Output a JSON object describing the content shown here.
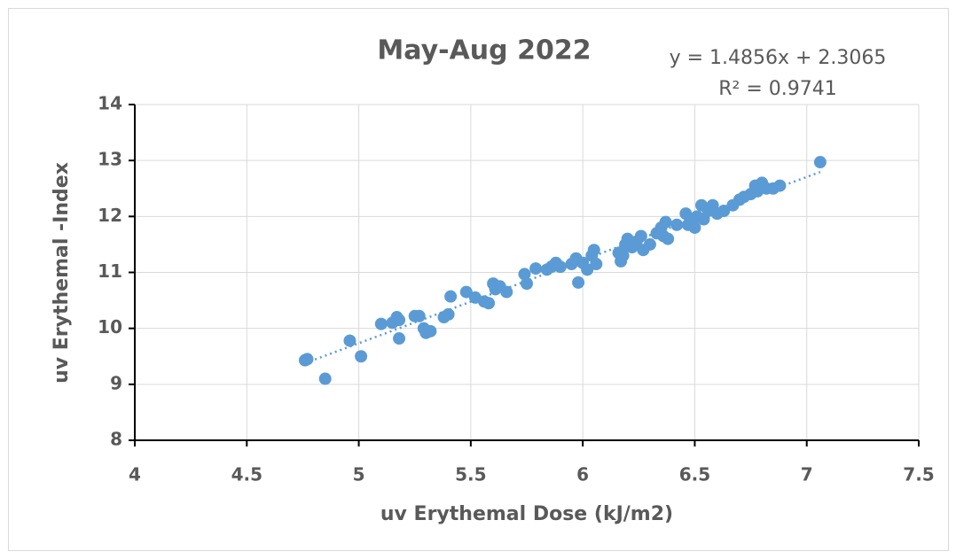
{
  "chart_data": {
    "type": "scatter",
    "title": "May-Aug 2022",
    "annotations": [
      "y = 1.4856x + 2.3065",
      "R² = 0.9741"
    ],
    "trendline": {
      "slope": 1.4856,
      "intercept": 2.3065
    },
    "xlabel": "uv Erythemal Dose (kJ/m2)",
    "ylabel": "uv Erythemal -Index",
    "x": [
      4.76,
      4.77,
      4.85,
      4.96,
      5.01,
      5.1,
      5.15,
      5.17,
      5.18,
      5.18,
      5.25,
      5.27,
      5.29,
      5.3,
      5.32,
      5.38,
      5.4,
      5.41,
      5.48,
      5.52,
      5.56,
      5.58,
      5.6,
      5.61,
      5.63,
      5.66,
      5.74,
      5.75,
      5.79,
      5.84,
      5.86,
      5.88,
      5.9,
      5.95,
      5.97,
      5.98,
      6.0,
      6.02,
      6.04,
      6.05,
      6.06,
      6.16,
      6.17,
      6.18,
      6.19,
      6.2,
      6.22,
      6.24,
      6.26,
      6.27,
      6.3,
      6.33,
      6.35,
      6.36,
      6.37,
      6.38,
      6.42,
      6.46,
      6.47,
      6.48,
      6.5,
      6.51,
      6.53,
      6.54,
      6.56,
      6.58,
      6.6,
      6.63,
      6.67,
      6.7,
      6.72,
      6.75,
      6.77,
      6.78,
      6.8,
      6.82,
      6.85,
      6.88,
      7.06
    ],
    "series": [
      {
        "color": "#5b9bd5",
        "values": [
          9.43,
          9.45,
          9.1,
          9.78,
          9.5,
          10.08,
          10.1,
          10.2,
          9.82,
          10.15,
          10.22,
          10.22,
          10.0,
          9.92,
          9.95,
          10.2,
          10.25,
          10.57,
          10.65,
          10.55,
          10.48,
          10.45,
          10.8,
          10.7,
          10.75,
          10.65,
          10.97,
          10.8,
          11.07,
          11.05,
          11.1,
          11.17,
          11.1,
          11.15,
          11.25,
          10.82,
          11.17,
          11.05,
          11.3,
          11.4,
          11.15,
          11.35,
          11.2,
          11.3,
          11.5,
          11.6,
          11.45,
          11.55,
          11.65,
          11.4,
          11.5,
          11.7,
          11.8,
          11.65,
          11.9,
          11.6,
          11.85,
          12.05,
          11.85,
          11.95,
          11.8,
          12.0,
          12.2,
          11.95,
          12.1,
          12.2,
          12.05,
          12.1,
          12.2,
          12.3,
          12.35,
          12.4,
          12.55,
          12.45,
          12.6,
          12.5,
          12.5,
          12.55,
          12.97
        ]
      }
    ],
    "xlim": [
      4,
      7.5
    ],
    "xticks": [
      4,
      4.5,
      5,
      5.5,
      6,
      6.5,
      7,
      7.5
    ],
    "ylim": [
      8,
      14
    ],
    "yticks": [
      8,
      9,
      10,
      11,
      12,
      13,
      14
    ],
    "grid": true
  }
}
